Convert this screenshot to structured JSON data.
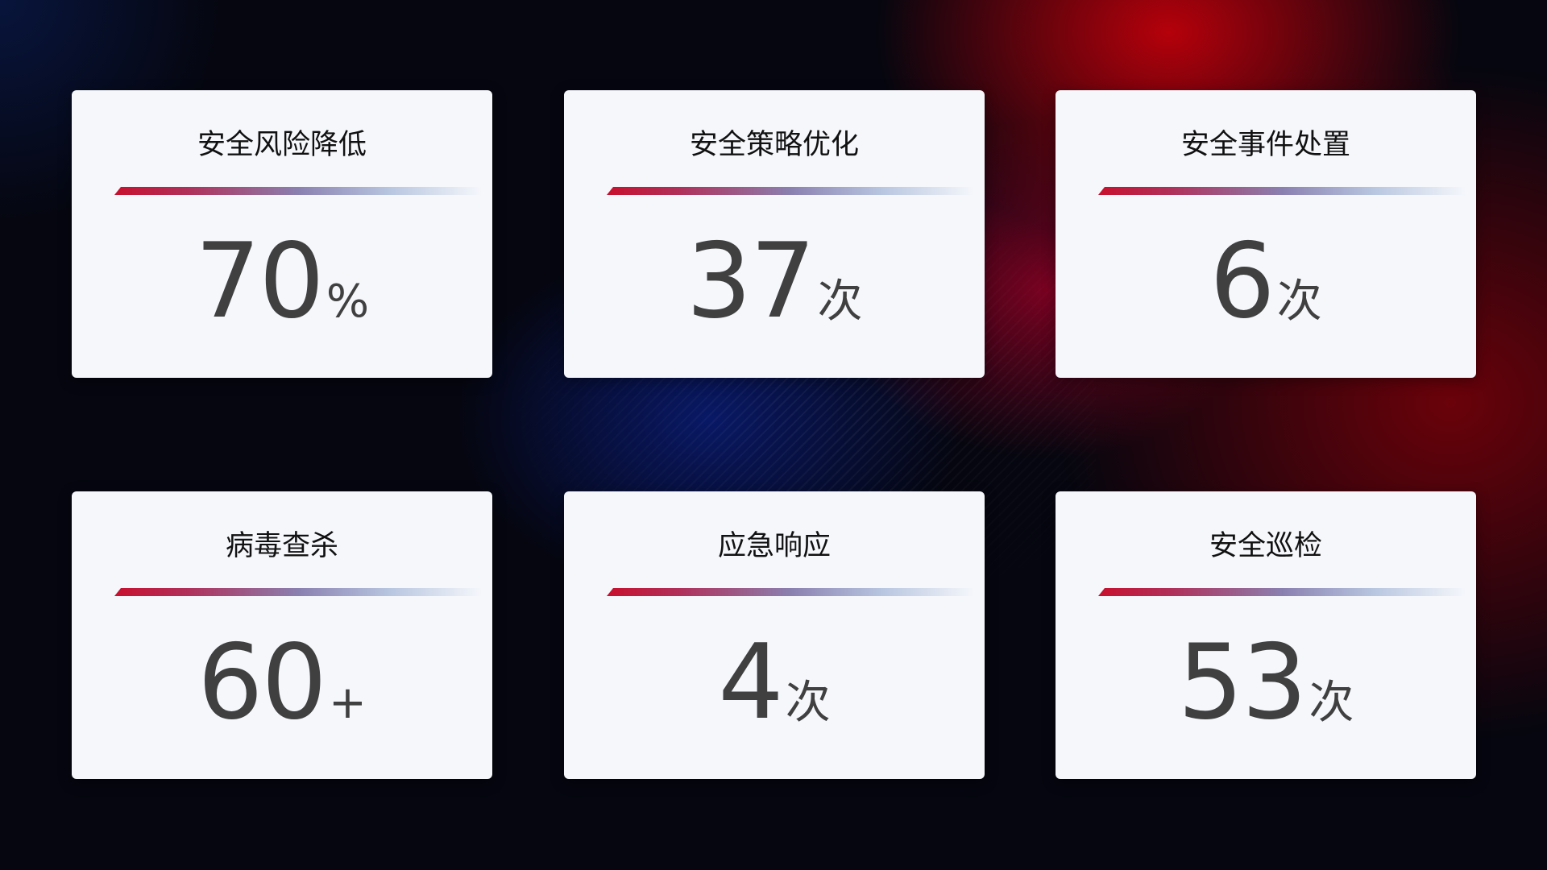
{
  "cards": [
    {
      "title": "安全风险降低",
      "value": "70",
      "unit": "%"
    },
    {
      "title": "安全策略优化",
      "value": "37",
      "unit": "次"
    },
    {
      "title": "安全事件处置",
      "value": "6",
      "unit": "次"
    },
    {
      "title": "病毒查杀",
      "value": "60",
      "unit": "+"
    },
    {
      "title": "应急响应",
      "value": "4",
      "unit": "次"
    },
    {
      "title": "安全巡检",
      "value": "53",
      "unit": "次"
    }
  ],
  "colors": {
    "accent_red": "#c8102e",
    "accent_blue": "#8a9ac8",
    "card_bg": "#f5f7fb",
    "value_text": "#404040"
  }
}
